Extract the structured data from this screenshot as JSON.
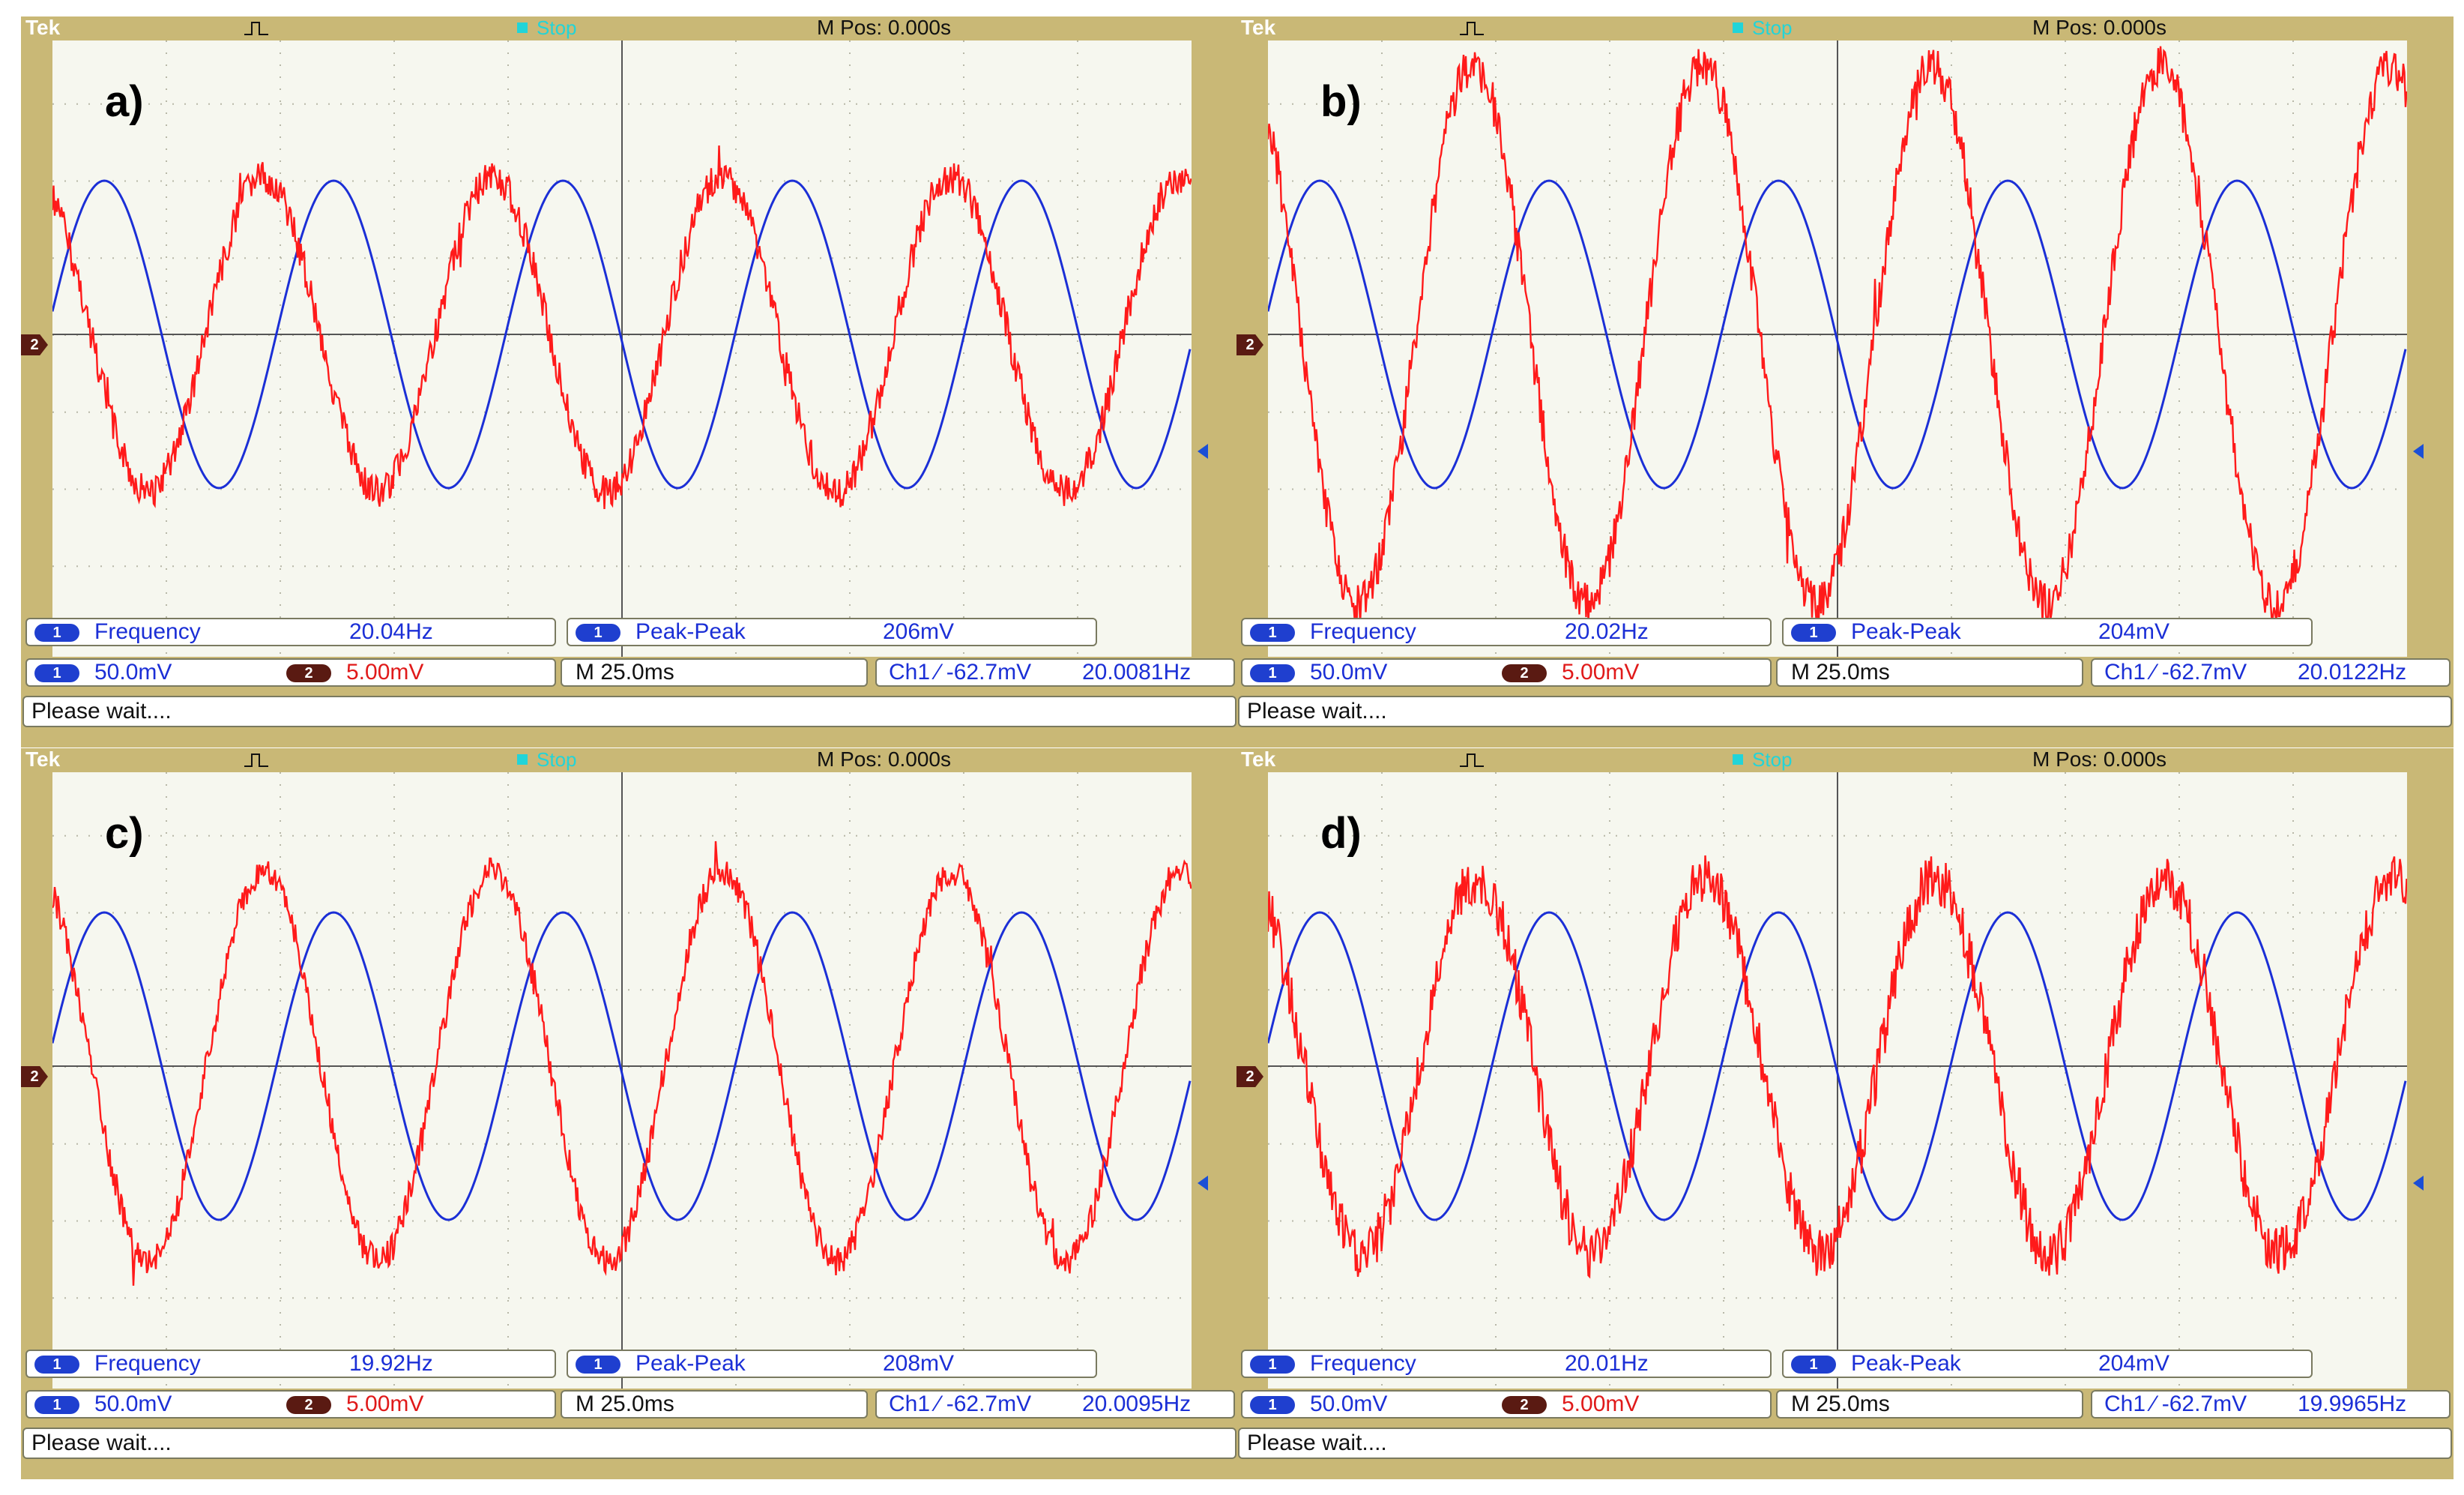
{
  "panels": [
    {
      "label": "a)",
      "tek": "Tek",
      "status": "Stop",
      "mpos": "M Pos: 0.000s",
      "channel_marker": "2",
      "meas1": {
        "chip": "1",
        "name": "Frequency",
        "value": "20.04Hz"
      },
      "meas2": {
        "chip": "1",
        "name": "Peak-Peak",
        "value": "206mV"
      },
      "ch1_chip": "1",
      "ch1_scale": "50.0mV",
      "ch2_chip": "2",
      "ch2_scale": "5.00mV",
      "timebase": "M 25.0ms",
      "trigger": "Ch1 ⁄ -62.7mV",
      "trigger_freq": "20.0081Hz",
      "message": "Please wait....",
      "red_amp": 0.42,
      "red_noise": 22,
      "red_phase": 0.2
    },
    {
      "label": "b)",
      "tek": "Tek",
      "status": "Stop",
      "mpos": "M Pos: 0.000s",
      "channel_marker": "2",
      "meas1": {
        "chip": "1",
        "name": "Frequency",
        "value": "20.02Hz"
      },
      "meas2": {
        "chip": "1",
        "name": "Peak-Peak",
        "value": "204mV"
      },
      "ch1_chip": "1",
      "ch1_scale": "50.0mV",
      "ch2_chip": "2",
      "ch2_scale": "5.00mV",
      "timebase": "M 25.0ms",
      "trigger": "Ch1 ⁄ -62.7mV",
      "trigger_freq": "20.0122Hz",
      "message": "Please wait....",
      "red_amp": 0.72,
      "red_noise": 28,
      "red_phase": 0.35
    },
    {
      "label": "c)",
      "tek": "Tek",
      "status": "Stop",
      "mpos": "M Pos: 0.000s",
      "channel_marker": "2",
      "meas1": {
        "chip": "1",
        "name": "Frequency",
        "value": "19.92Hz"
      },
      "meas2": {
        "chip": "1",
        "name": "Peak-Peak",
        "value": "208mV"
      },
      "ch1_chip": "1",
      "ch1_scale": "50.0mV",
      "ch2_chip": "2",
      "ch2_scale": "5.00mV",
      "timebase": "M 25.0ms",
      "trigger": "Ch1 ⁄ -62.7mV",
      "trigger_freq": "20.0095Hz",
      "message": "Please wait....",
      "red_amp": 0.52,
      "red_noise": 20,
      "red_phase": 0.18
    },
    {
      "label": "d)",
      "tek": "Tek",
      "status": "Stop",
      "mpos": "M Pos: 0.000s",
      "channel_marker": "2",
      "meas1": {
        "chip": "1",
        "name": "Frequency",
        "value": "20.01Hz"
      },
      "meas2": {
        "chip": "1",
        "name": "Peak-Peak",
        "value": "204mV"
      },
      "ch1_chip": "1",
      "ch1_scale": "50.0mV",
      "ch2_chip": "2",
      "ch2_scale": "5.00mV",
      "timebase": "M 25.0ms",
      "trigger": "Ch1 ⁄ -62.7mV",
      "trigger_freq": "19.9965Hz",
      "message": "Please wait....",
      "red_amp": 0.5,
      "red_noise": 34,
      "red_phase": 0.25
    }
  ],
  "colors": {
    "ch1": "#1b2fd6",
    "ch2": "#ff1a1a",
    "bezel": "#c9b876",
    "screen": "#f6f7ef"
  }
}
